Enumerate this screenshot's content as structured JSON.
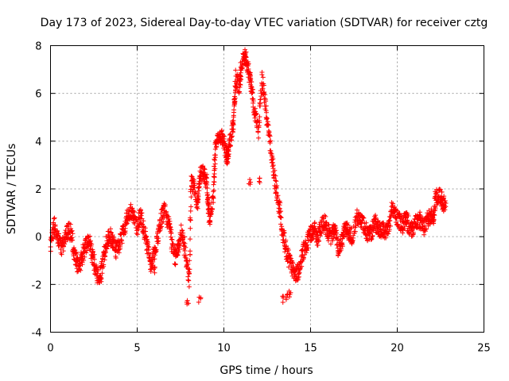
{
  "chart_data": {
    "type": "scatter",
    "title": "Day 173 of 2023, Sidereal Day-to-day VTEC variation (SDTVAR) for receiver cztg",
    "xlabel": "GPS time / hours",
    "ylabel": "SDTVAR / TECUs",
    "xlim": [
      0,
      25
    ],
    "ylim": [
      -4,
      8
    ],
    "xticks": [
      0,
      5,
      10,
      15,
      20,
      25
    ],
    "yticks": [
      -4,
      -2,
      0,
      2,
      4,
      6,
      8
    ],
    "grid": true,
    "marker": "+",
    "color": "#ff0000",
    "series": [
      {
        "name": "SDTVAR",
        "trace": [
          [
            0.0,
            -0.5
          ],
          [
            0.2,
            0.5
          ],
          [
            0.4,
            0.0
          ],
          [
            0.6,
            -0.5
          ],
          [
            0.8,
            -0.2
          ],
          [
            1.0,
            0.3
          ],
          [
            1.2,
            0.1
          ],
          [
            1.4,
            -0.8
          ],
          [
            1.6,
            -1.3
          ],
          [
            1.8,
            -0.9
          ],
          [
            2.0,
            -0.4
          ],
          [
            2.2,
            -0.1
          ],
          [
            2.4,
            -0.7
          ],
          [
            2.6,
            -1.4
          ],
          [
            2.8,
            -1.8
          ],
          [
            3.0,
            -1.1
          ],
          [
            3.2,
            -0.4
          ],
          [
            3.4,
            0.1
          ],
          [
            3.6,
            -0.2
          ],
          [
            3.8,
            -0.6
          ],
          [
            4.0,
            -0.3
          ],
          [
            4.2,
            0.3
          ],
          [
            4.4,
            0.7
          ],
          [
            4.6,
            1.1
          ],
          [
            4.8,
            0.8
          ],
          [
            5.0,
            0.4
          ],
          [
            5.2,
            0.9
          ],
          [
            5.4,
            0.2
          ],
          [
            5.6,
            -0.5
          ],
          [
            5.8,
            -1.2
          ],
          [
            6.0,
            -0.6
          ],
          [
            6.2,
            0.1
          ],
          [
            6.4,
            0.8
          ],
          [
            6.6,
            1.2
          ],
          [
            6.8,
            0.6
          ],
          [
            7.0,
            -0.2
          ],
          [
            7.2,
            -0.9
          ],
          [
            7.4,
            -0.4
          ],
          [
            7.6,
            0.3
          ],
          [
            7.8,
            -0.8
          ],
          [
            8.0,
            -1.8
          ],
          [
            8.1,
            2.3
          ],
          [
            8.3,
            2.0
          ],
          [
            8.5,
            1.4
          ],
          [
            8.6,
            2.5
          ],
          [
            8.8,
            2.8
          ],
          [
            9.0,
            2.3
          ],
          [
            9.1,
            1.2
          ],
          [
            9.2,
            0.6
          ],
          [
            9.4,
            1.8
          ],
          [
            9.5,
            3.6
          ],
          [
            9.7,
            4.3
          ],
          [
            9.9,
            4.2
          ],
          [
            10.1,
            3.6
          ],
          [
            10.2,
            3.2
          ],
          [
            10.3,
            3.8
          ],
          [
            10.5,
            4.5
          ],
          [
            10.6,
            5.5
          ],
          [
            10.7,
            6.7
          ],
          [
            10.9,
            6.2
          ],
          [
            11.0,
            7.1
          ],
          [
            11.2,
            7.7
          ],
          [
            11.3,
            7.3
          ],
          [
            11.5,
            6.6
          ],
          [
            11.6,
            6.2
          ],
          [
            11.8,
            5.2
          ],
          [
            12.0,
            4.4
          ],
          [
            12.2,
            6.6
          ],
          [
            12.4,
            5.5
          ],
          [
            12.6,
            4.2
          ],
          [
            12.8,
            3.1
          ],
          [
            13.0,
            2.1
          ],
          [
            13.2,
            1.2
          ],
          [
            13.4,
            0.2
          ],
          [
            13.6,
            -0.6
          ],
          [
            13.8,
            -1.1
          ],
          [
            14.0,
            -1.4
          ],
          [
            14.2,
            -1.6
          ],
          [
            14.4,
            -1.2
          ],
          [
            14.6,
            -0.6
          ],
          [
            14.8,
            -0.2
          ],
          [
            15.0,
            0.1
          ],
          [
            15.2,
            0.3
          ],
          [
            15.4,
            -0.1
          ],
          [
            15.6,
            0.4
          ],
          [
            15.8,
            0.6
          ],
          [
            16.0,
            0.2
          ],
          [
            16.2,
            0.0
          ],
          [
            16.4,
            0.4
          ],
          [
            16.6,
            -0.5
          ],
          [
            16.8,
            -0.2
          ],
          [
            17.0,
            0.5
          ],
          [
            17.2,
            0.2
          ],
          [
            17.4,
            0.0
          ],
          [
            17.7,
            0.8
          ],
          [
            17.9,
            0.6
          ],
          [
            18.1,
            0.4
          ],
          [
            18.3,
            0.1
          ],
          [
            18.5,
            0.2
          ],
          [
            18.7,
            0.6
          ],
          [
            18.9,
            0.4
          ],
          [
            19.1,
            0.3
          ],
          [
            19.3,
            0.2
          ],
          [
            19.5,
            0.5
          ],
          [
            19.7,
            1.1
          ],
          [
            19.9,
            0.9
          ],
          [
            20.1,
            0.7
          ],
          [
            20.3,
            0.5
          ],
          [
            20.5,
            0.8
          ],
          [
            20.7,
            0.4
          ],
          [
            20.9,
            0.2
          ],
          [
            21.1,
            0.6
          ],
          [
            21.3,
            0.7
          ],
          [
            21.5,
            0.4
          ],
          [
            21.7,
            0.6
          ],
          [
            21.9,
            0.9
          ],
          [
            22.1,
            0.8
          ],
          [
            22.2,
            1.6
          ],
          [
            22.4,
            1.8
          ],
          [
            22.6,
            1.5
          ],
          [
            22.8,
            1.4
          ]
        ],
        "extra_points": [
          [
            13.4,
            -2.6
          ],
          [
            13.6,
            -2.5
          ],
          [
            13.8,
            -2.4
          ],
          [
            7.9,
            -2.7
          ],
          [
            8.6,
            -2.6
          ],
          [
            12.1,
            2.4
          ],
          [
            11.5,
            2.3
          ],
          [
            2.9,
            -1.8
          ],
          [
            6.0,
            -1.4
          ],
          [
            22.6,
            1.2
          ]
        ]
      }
    ]
  }
}
